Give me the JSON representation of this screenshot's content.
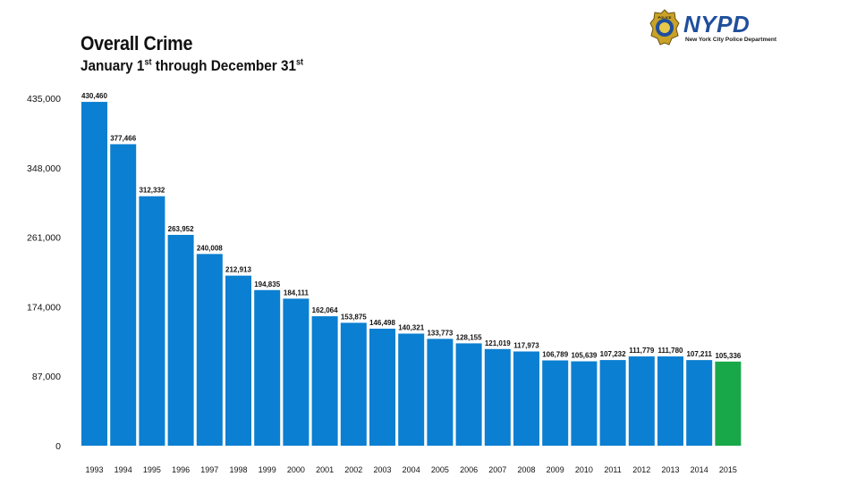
{
  "header": {
    "title": "Overall Crime",
    "subtitle_parts": [
      "January 1",
      "st",
      " through December 31",
      "st"
    ]
  },
  "logo": {
    "text": "NYPD",
    "subtext": "New York City Police Department",
    "badge_text": "POLICE",
    "icon": "police-badge-icon"
  },
  "colors": {
    "bar": "#0b7fd1",
    "highlight_bar": "#18a84a",
    "text": "#111111"
  },
  "chart_data": {
    "type": "bar",
    "title": "Overall Crime",
    "subtitle": "January 1st through December 31st",
    "xlabel": "",
    "ylabel": "",
    "ylim": [
      0,
      435000
    ],
    "yticks": [
      0,
      87000,
      174000,
      261000,
      348000,
      435000
    ],
    "ytick_labels": [
      "0",
      "87,000",
      "174,000",
      "261,000",
      "348,000",
      "435,000"
    ],
    "grid": false,
    "categories": [
      "1993",
      "1994",
      "1995",
      "1996",
      "1997",
      "1998",
      "1999",
      "2000",
      "2001",
      "2002",
      "2003",
      "2004",
      "2005",
      "2006",
      "2007",
      "2008",
      "2009",
      "2010",
      "2011",
      "2012",
      "2013",
      "2014",
      "2015"
    ],
    "values": [
      430460,
      377466,
      312332,
      263952,
      240008,
      212913,
      194835,
      184111,
      162064,
      153875,
      146498,
      140321,
      133773,
      128155,
      121019,
      117973,
      106789,
      105639,
      107232,
      111779,
      111780,
      107211,
      105336
    ],
    "data_labels": [
      "430,460",
      "377,466",
      "312,332",
      "263,952",
      "240,008",
      "212,913",
      "194,835",
      "184,111",
      "162,064",
      "153,875",
      "146,498",
      "140,321",
      "133,773",
      "128,155",
      "121,019",
      "117,973",
      "106,789",
      "105,639",
      "107,232",
      "111,779",
      "111,780",
      "107,211",
      "105,336"
    ],
    "highlight_index": 22
  }
}
